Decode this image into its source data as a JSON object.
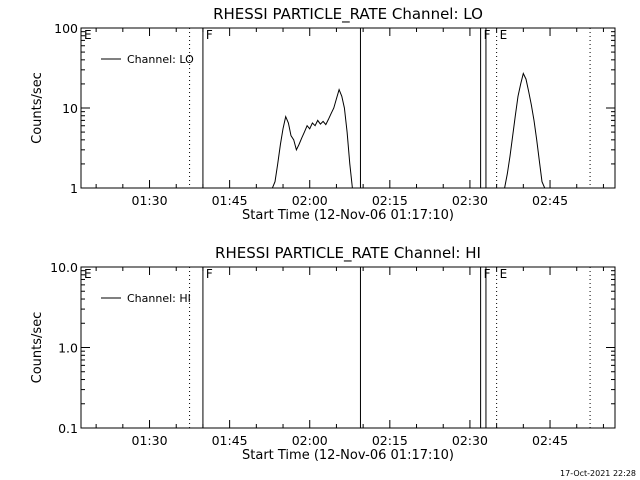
{
  "chart_data": [
    {
      "type": "line",
      "title": "RHESSI PARTICLE_RATE Channel: LO",
      "xlabel": "Start Time (12-Nov-06 01:17:10)",
      "ylabel": "Counts/sec",
      "x_range": [
        "01:17:10",
        "02:57:10"
      ],
      "x_ticks": [
        "01:30",
        "01:45",
        "02:00",
        "02:15",
        "02:30",
        "02:45"
      ],
      "y_scale": "log",
      "y_range": [
        1,
        100
      ],
      "y_ticks": [
        "1",
        "10",
        "100"
      ],
      "legend": {
        "position": "top-left",
        "entries": [
          "Channel: LO"
        ]
      },
      "series": [
        {
          "name": "Channel: LO",
          "points": [
            [
              "01:53:00",
              0.8
            ],
            [
              "01:53:30",
              1.2
            ],
            [
              "01:54:00",
              2.0
            ],
            [
              "01:54:30",
              3.5
            ],
            [
              "01:55:00",
              5.5
            ],
            [
              "01:55:30",
              7.8
            ],
            [
              "01:56:00",
              6.5
            ],
            [
              "01:56:30",
              4.5
            ],
            [
              "01:57:00",
              4.0
            ],
            [
              "01:57:30",
              3.0
            ],
            [
              "01:58:00",
              3.5
            ],
            [
              "01:58:30",
              4.2
            ],
            [
              "01:59:00",
              5.0
            ],
            [
              "01:59:30",
              6.0
            ],
            [
              "02:00:00",
              5.5
            ],
            [
              "02:00:30",
              6.5
            ],
            [
              "02:01:00",
              6.0
            ],
            [
              "02:01:30",
              7.0
            ],
            [
              "02:02:00",
              6.3
            ],
            [
              "02:02:30",
              6.8
            ],
            [
              "02:03:00",
              6.2
            ],
            [
              "02:03:30",
              7.2
            ],
            [
              "02:04:00",
              8.5
            ],
            [
              "02:04:30",
              10.0
            ],
            [
              "02:05:00",
              13.0
            ],
            [
              "02:05:30",
              17.0
            ],
            [
              "02:06:00",
              14.0
            ],
            [
              "02:06:30",
              10.0
            ],
            [
              "02:07:00",
              5.0
            ],
            [
              "02:07:30",
              2.0
            ],
            [
              "02:08:00",
              0.8
            ]
          ]
        },
        {
          "name": "Channel: LO",
          "points": [
            [
              "02:36:30",
              0.8
            ],
            [
              "02:37:00",
              1.5
            ],
            [
              "02:37:30",
              2.5
            ],
            [
              "02:38:00",
              4.5
            ],
            [
              "02:38:30",
              8.0
            ],
            [
              "02:39:00",
              14.0
            ],
            [
              "02:39:30",
              20.0
            ],
            [
              "02:40:00",
              27.0
            ],
            [
              "02:40:30",
              23.0
            ],
            [
              "02:41:00",
              16.0
            ],
            [
              "02:41:30",
              11.0
            ],
            [
              "02:42:00",
              7.0
            ],
            [
              "02:42:30",
              4.0
            ],
            [
              "02:43:00",
              2.2
            ],
            [
              "02:43:30",
              1.2
            ],
            [
              "02:44:00",
              0.8
            ]
          ]
        }
      ],
      "annotations": [
        {
          "label": "E",
          "time": "01:17:10",
          "style": "none"
        },
        {
          "label": "",
          "time": "01:37:30",
          "style": "dotted"
        },
        {
          "label": "F",
          "time": "01:40:00",
          "style": "solid"
        },
        {
          "label": "",
          "time": "02:09:30",
          "style": "solid"
        },
        {
          "label": "F",
          "time": "02:32:00",
          "style": "solid"
        },
        {
          "label": "",
          "time": "02:33:00",
          "style": "solid"
        },
        {
          "label": "E",
          "time": "02:35:00",
          "style": "dotted"
        },
        {
          "label": "",
          "time": "02:52:30",
          "style": "dotted"
        }
      ]
    },
    {
      "type": "line",
      "title": "RHESSI PARTICLE_RATE Channel: HI",
      "xlabel": "Start Time (12-Nov-06 01:17:10)",
      "ylabel": "Counts/sec",
      "x_range": [
        "01:17:10",
        "02:57:10"
      ],
      "x_ticks": [
        "01:30",
        "01:45",
        "02:00",
        "02:15",
        "02:30",
        "02:45"
      ],
      "y_scale": "log",
      "y_range": [
        0.1,
        10
      ],
      "y_ticks": [
        "0.1",
        "1.0",
        "10.0"
      ],
      "legend": {
        "position": "top-left",
        "entries": [
          "Channel: HI"
        ]
      },
      "series": [
        {
          "name": "Channel: HI",
          "points": []
        }
      ],
      "annotations": [
        {
          "label": "E",
          "time": "01:17:10",
          "style": "none"
        },
        {
          "label": "",
          "time": "01:37:30",
          "style": "dotted"
        },
        {
          "label": "F",
          "time": "01:40:00",
          "style": "solid"
        },
        {
          "label": "",
          "time": "02:09:30",
          "style": "solid"
        },
        {
          "label": "F",
          "time": "02:32:00",
          "style": "solid"
        },
        {
          "label": "",
          "time": "02:33:00",
          "style": "solid"
        },
        {
          "label": "E",
          "time": "02:35:00",
          "style": "dotted"
        },
        {
          "label": "",
          "time": "02:52:30",
          "style": "dotted"
        }
      ]
    }
  ],
  "footer": {
    "timestamp": "17-Oct-2021 22:28"
  }
}
